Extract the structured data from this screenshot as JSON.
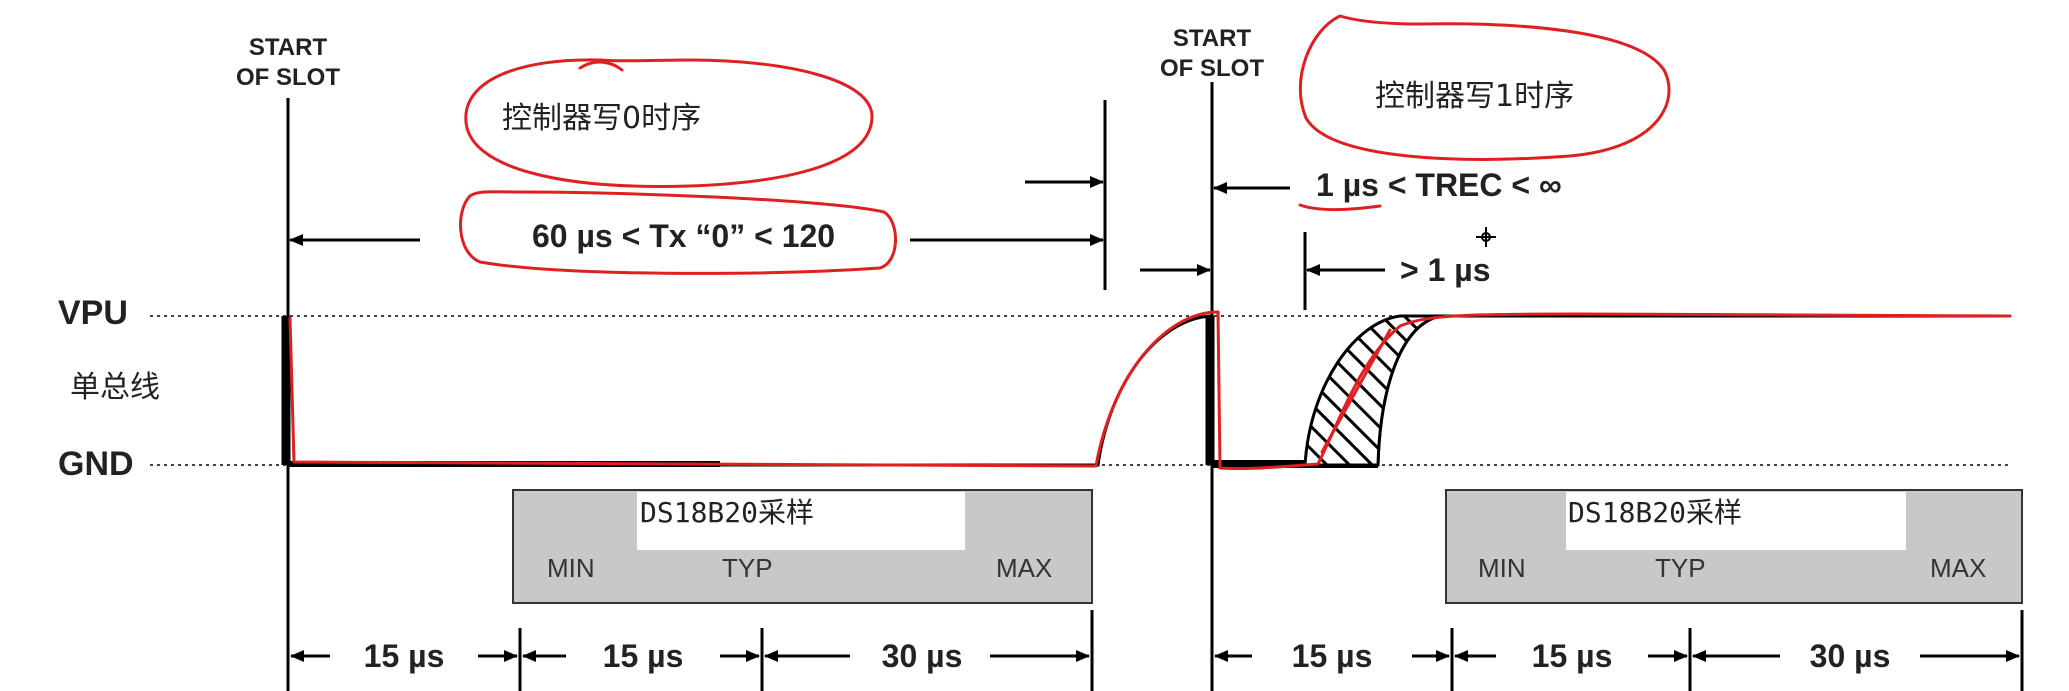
{
  "left": {
    "start_label_line1": "START",
    "start_label_line2": "OF SLOT",
    "note": "控制器写0时序",
    "tx_label": "60 µs < Tx “0” < 120",
    "sample_label": "DS18B20采样",
    "min": "MIN",
    "typ": "TYP",
    "max": "MAX",
    "seg1": "15 µs",
    "seg2": "15 µs",
    "seg3": "30 µs"
  },
  "right": {
    "start_label_line1": "START",
    "start_label_line2": "OF SLOT",
    "note": "控制器写1时序",
    "trec_label": "1 µs < TREC < ∞",
    "gt1_label": "> 1 µs",
    "sample_label": "DS18B20采样",
    "min": "MIN",
    "typ": "TYP",
    "max": "MAX",
    "seg1": "15 µs",
    "seg2": "15 µs",
    "seg3": "30 µs"
  },
  "levels": {
    "vpu": "VPU",
    "bus": "单总线",
    "gnd": "GND"
  },
  "colors": {
    "annotation_red": "#e02020",
    "sample_box_fill": "#c8c8c8",
    "line": "#000000"
  }
}
